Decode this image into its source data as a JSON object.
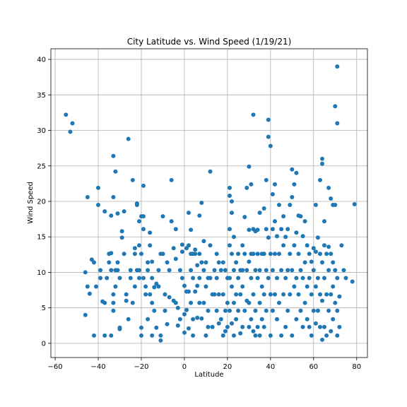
{
  "chart_data": {
    "type": "scatter",
    "title": "City Latitude vs. Wind Speed (1/19/21)",
    "xlabel": "Latitude",
    "ylabel": "Wind Speed",
    "xlim": [
      -62,
      85
    ],
    "ylim": [
      -2,
      41.5
    ],
    "xticks": [
      -60,
      -40,
      -20,
      0,
      20,
      40,
      60,
      80
    ],
    "yticks": [
      0,
      5,
      10,
      15,
      20,
      25,
      30,
      35,
      40
    ],
    "grid": true,
    "marker_color": "#1f77b4",
    "points": [
      [
        -55,
        32.2
      ],
      [
        -53,
        29.8
      ],
      [
        -52,
        31
      ],
      [
        -46,
        10
      ],
      [
        -46,
        4
      ],
      [
        -45,
        20.6
      ],
      [
        -45,
        8
      ],
      [
        -44,
        7
      ],
      [
        -43,
        11.8
      ],
      [
        -42,
        11.4
      ],
      [
        -42,
        1.1
      ],
      [
        -41,
        8
      ],
      [
        -40,
        19.5
      ],
      [
        -40,
        21.9
      ],
      [
        -39,
        9.2
      ],
      [
        -39,
        10.3
      ],
      [
        -38,
        5.9
      ],
      [
        -37,
        5.7
      ],
      [
        -37,
        1.1
      ],
      [
        -37,
        18.6
      ],
      [
        -36,
        9.2
      ],
      [
        -35,
        11.4
      ],
      [
        -35,
        12.6
      ],
      [
        -34,
        1.1
      ],
      [
        -34,
        12.7
      ],
      [
        -34,
        18
      ],
      [
        -34,
        10.3
      ],
      [
        -33,
        26.4
      ],
      [
        -33,
        20.6
      ],
      [
        -33,
        6.9
      ],
      [
        -33,
        5.7
      ],
      [
        -33,
        4.6
      ],
      [
        -32,
        24.2
      ],
      [
        -32,
        10.3
      ],
      [
        -32,
        8
      ],
      [
        -31,
        18.3
      ],
      [
        -31,
        11.4
      ],
      [
        -31,
        10.3
      ],
      [
        -30,
        9.2
      ],
      [
        -30,
        2.2
      ],
      [
        -30,
        2
      ],
      [
        -29,
        14.9
      ],
      [
        -29,
        15.8
      ],
      [
        -28,
        18.6
      ],
      [
        -28,
        12.6
      ],
      [
        -27,
        6.9
      ],
      [
        -27,
        6
      ],
      [
        -26,
        28.8
      ],
      [
        -26,
        3.4
      ],
      [
        -25,
        9.2
      ],
      [
        -25,
        10.3
      ],
      [
        -24,
        23
      ],
      [
        -24,
        5.7
      ],
      [
        -23,
        12.6
      ],
      [
        -23,
        13.4
      ],
      [
        -23,
        8
      ],
      [
        -22,
        19.5
      ],
      [
        -22,
        19.7
      ],
      [
        -22,
        10.3
      ],
      [
        -21,
        17.2
      ],
      [
        -21,
        13.8
      ],
      [
        -21,
        9.2
      ],
      [
        -21,
        10.3
      ],
      [
        -20,
        17.9
      ],
      [
        -20,
        12.6
      ],
      [
        -20,
        2.2
      ],
      [
        -20,
        1.1
      ],
      [
        -19,
        22.2
      ],
      [
        -19,
        17.9
      ],
      [
        -19,
        16.1
      ],
      [
        -19,
        9.2
      ],
      [
        -18,
        8
      ],
      [
        -18,
        6.9
      ],
      [
        -17,
        11.4
      ],
      [
        -17,
        10.3
      ],
      [
        -17,
        3.4
      ],
      [
        -16,
        15.6
      ],
      [
        -16,
        13.8
      ],
      [
        -16,
        6.9
      ],
      [
        -15,
        11.5
      ],
      [
        -15,
        9.2
      ],
      [
        -15,
        5.7
      ],
      [
        -15,
        1.1
      ],
      [
        -14,
        7.9
      ],
      [
        -14,
        4.6
      ],
      [
        -13,
        8.4
      ],
      [
        -13,
        2.2
      ],
      [
        -12,
        10.3
      ],
      [
        -12,
        8
      ],
      [
        -11,
        12.6
      ],
      [
        -11,
        1.1
      ],
      [
        -11,
        0.4
      ],
      [
        -10,
        17.9
      ],
      [
        -10,
        12.6
      ],
      [
        -9,
        6.9
      ],
      [
        -9,
        4.6
      ],
      [
        -8,
        11.4
      ],
      [
        -8,
        2.7
      ],
      [
        -7,
        10.3
      ],
      [
        -7,
        6.5
      ],
      [
        -6,
        23
      ],
      [
        -6,
        17.2
      ],
      [
        -5,
        13.4
      ],
      [
        -5,
        6
      ],
      [
        -4,
        16.1
      ],
      [
        -4,
        11.9
      ],
      [
        -4,
        5.7
      ],
      [
        -3,
        5
      ],
      [
        -3,
        2.5
      ],
      [
        -2,
        10.3
      ],
      [
        -2,
        3.4
      ],
      [
        -1,
        12.9
      ],
      [
        -1,
        13.9
      ],
      [
        -1,
        9.2
      ],
      [
        0,
        8.1
      ],
      [
        0,
        1.5
      ],
      [
        0,
        4.1
      ],
      [
        1,
        13.4
      ],
      [
        1,
        7.3
      ],
      [
        1,
        4.7
      ],
      [
        2,
        18.4
      ],
      [
        2,
        13.8
      ],
      [
        2,
        7.3
      ],
      [
        2,
        2.1
      ],
      [
        3,
        16
      ],
      [
        3,
        12.6
      ],
      [
        3,
        10.3
      ],
      [
        3,
        5.7
      ],
      [
        4,
        12.6
      ],
      [
        4,
        9.2
      ],
      [
        4,
        3.4
      ],
      [
        4,
        1.1
      ],
      [
        5,
        12.6
      ],
      [
        5,
        13.2
      ],
      [
        5,
        7.3
      ],
      [
        6,
        11
      ],
      [
        6,
        8.1
      ],
      [
        6,
        3.6
      ],
      [
        7,
        18
      ],
      [
        7,
        12.6
      ],
      [
        7,
        9.2
      ],
      [
        7,
        5.7
      ],
      [
        8,
        19.8
      ],
      [
        8,
        11.4
      ],
      [
        8,
        3.5
      ],
      [
        9,
        14.4
      ],
      [
        9,
        10.3
      ],
      [
        9,
        5.7
      ],
      [
        10,
        11.4
      ],
      [
        10,
        8
      ],
      [
        10,
        1.1
      ],
      [
        11,
        9.2
      ],
      [
        11,
        4.6
      ],
      [
        11,
        2.3
      ],
      [
        12,
        24.2
      ],
      [
        12,
        13.8
      ],
      [
        12,
        9.2
      ],
      [
        13,
        6.9
      ],
      [
        13,
        2.3
      ],
      [
        14,
        10.3
      ],
      [
        14,
        6.9
      ],
      [
        15,
        12.6
      ],
      [
        15,
        9.2
      ],
      [
        15,
        4.6
      ],
      [
        16,
        11.4
      ],
      [
        16,
        6.9
      ],
      [
        16,
        2.8
      ],
      [
        17,
        10.3
      ],
      [
        17,
        3.4
      ],
      [
        18,
        11.4
      ],
      [
        18,
        6.9
      ],
      [
        18,
        1.1
      ],
      [
        19,
        10.3
      ],
      [
        19,
        4.6
      ],
      [
        19,
        1.7
      ],
      [
        20,
        9.2
      ],
      [
        20,
        5.7
      ],
      [
        20,
        2.3
      ],
      [
        21,
        21.9
      ],
      [
        21,
        20.8
      ],
      [
        21,
        16.1
      ],
      [
        21,
        13.8
      ],
      [
        21,
        9.2
      ],
      [
        21,
        4.6
      ],
      [
        22,
        20
      ],
      [
        22,
        18.4
      ],
      [
        22,
        12.6
      ],
      [
        22,
        8
      ],
      [
        22,
        2.8
      ],
      [
        23,
        15
      ],
      [
        23,
        10.3
      ],
      [
        23,
        5.7
      ],
      [
        23,
        1.1
      ],
      [
        24,
        11.4
      ],
      [
        24,
        6.9
      ],
      [
        24,
        3.4
      ],
      [
        25,
        12.6
      ],
      [
        25,
        9.2
      ],
      [
        25,
        4.6
      ],
      [
        26,
        10.3
      ],
      [
        26,
        6.9
      ],
      [
        26,
        1.4
      ],
      [
        27,
        13.8
      ],
      [
        27,
        10.3
      ],
      [
        27,
        8
      ],
      [
        27,
        2.3
      ],
      [
        28,
        17.8
      ],
      [
        28,
        12.6
      ],
      [
        28,
        4.6
      ],
      [
        29,
        21.9
      ],
      [
        29,
        10.3
      ],
      [
        29,
        6
      ],
      [
        30,
        24.9
      ],
      [
        30,
        16
      ],
      [
        30,
        11.5
      ],
      [
        30,
        5.7
      ],
      [
        30,
        2.3
      ],
      [
        31,
        22.4
      ],
      [
        31,
        12.6
      ],
      [
        31,
        9.2
      ],
      [
        31,
        3.4
      ],
      [
        32,
        32.2
      ],
      [
        32,
        16.1
      ],
      [
        32,
        12.6
      ],
      [
        32,
        6.9
      ],
      [
        32,
        1.7
      ],
      [
        33,
        15.8
      ],
      [
        33,
        10.3
      ],
      [
        33,
        4.6
      ],
      [
        33,
        1.1
      ],
      [
        34,
        16
      ],
      [
        34,
        12.6
      ],
      [
        34,
        9.2
      ],
      [
        34,
        2.3
      ],
      [
        35,
        18.4
      ],
      [
        35,
        10.3
      ],
      [
        35,
        5.7
      ],
      [
        35,
        1.1
      ],
      [
        36,
        12.6
      ],
      [
        36,
        8
      ],
      [
        36,
        3.4
      ],
      [
        37,
        19
      ],
      [
        37,
        12.6
      ],
      [
        37,
        6.9
      ],
      [
        37,
        2.3
      ],
      [
        38,
        23
      ],
      [
        38,
        16.1
      ],
      [
        38,
        10.3
      ],
      [
        38,
        4.6
      ],
      [
        39,
        31.5
      ],
      [
        39,
        29.1
      ],
      [
        39,
        14.9
      ],
      [
        39,
        9.2
      ],
      [
        40,
        27.8
      ],
      [
        40,
        12.6
      ],
      [
        40,
        6.9
      ],
      [
        40,
        1.1
      ],
      [
        41,
        21
      ],
      [
        41,
        16.1
      ],
      [
        41,
        10.3
      ],
      [
        41,
        4.6
      ],
      [
        42,
        22.4
      ],
      [
        42,
        17.2
      ],
      [
        42,
        12.6
      ],
      [
        42,
        6.9
      ],
      [
        43,
        15.1
      ],
      [
        43,
        9.2
      ],
      [
        43,
        3.4
      ],
      [
        44,
        19.5
      ],
      [
        44,
        12.6
      ],
      [
        44,
        5.7
      ],
      [
        45,
        16.1
      ],
      [
        45,
        10.3
      ],
      [
        45,
        1.1
      ],
      [
        46,
        17.9
      ],
      [
        46,
        13.8
      ],
      [
        46,
        6.9
      ],
      [
        47,
        15
      ],
      [
        47,
        9.2
      ],
      [
        47,
        2.3
      ],
      [
        48,
        16.1
      ],
      [
        48,
        10.3
      ],
      [
        48,
        4.6
      ],
      [
        49,
        19.5
      ],
      [
        49,
        12.6
      ],
      [
        49,
        6.9
      ],
      [
        50,
        24.5
      ],
      [
        50,
        20.6
      ],
      [
        50,
        10.3
      ],
      [
        50,
        1.1
      ],
      [
        51,
        22.4
      ],
      [
        51,
        13.8
      ],
      [
        51,
        8
      ],
      [
        52,
        24
      ],
      [
        52,
        15.6
      ],
      [
        52,
        9.2
      ],
      [
        52,
        3.4
      ],
      [
        53,
        18
      ],
      [
        53,
        12.6
      ],
      [
        53,
        6.9
      ],
      [
        54,
        17.9
      ],
      [
        54,
        10.3
      ],
      [
        54,
        4.6
      ],
      [
        55,
        15.1
      ],
      [
        55,
        9.2
      ],
      [
        55,
        2.3
      ],
      [
        56,
        17.2
      ],
      [
        56,
        11.4
      ],
      [
        56,
        5.7
      ],
      [
        57,
        13.8
      ],
      [
        57,
        8
      ],
      [
        57,
        3.4
      ],
      [
        58,
        12.6
      ],
      [
        58,
        9.2
      ],
      [
        58,
        2.3
      ],
      [
        59,
        11.5
      ],
      [
        59,
        6.9
      ],
      [
        59,
        1.1
      ],
      [
        60,
        13.4
      ],
      [
        60,
        10.3
      ],
      [
        60,
        4.6
      ],
      [
        61,
        19.5
      ],
      [
        61,
        12.9
      ],
      [
        61,
        8
      ],
      [
        61,
        2.8
      ],
      [
        62,
        14.9
      ],
      [
        62,
        9.2
      ],
      [
        62,
        4.6
      ],
      [
        63,
        23
      ],
      [
        63,
        12.6
      ],
      [
        63,
        6.9
      ],
      [
        63,
        2.3
      ],
      [
        64,
        26
      ],
      [
        64,
        25.3
      ],
      [
        64,
        11.4
      ],
      [
        64,
        6
      ],
      [
        64,
        0.5
      ],
      [
        65,
        17.2
      ],
      [
        65,
        13.8
      ],
      [
        65,
        9.2
      ],
      [
        65,
        2.3
      ],
      [
        66,
        12.6
      ],
      [
        66,
        6.9
      ],
      [
        66,
        1.1
      ],
      [
        67,
        21.9
      ],
      [
        67,
        13.6
      ],
      [
        67,
        10.3
      ],
      [
        67,
        4.6
      ],
      [
        68,
        20.4
      ],
      [
        68,
        12.6
      ],
      [
        68,
        6.9
      ],
      [
        68,
        1.7
      ],
      [
        69,
        19.5
      ],
      [
        69,
        11.4
      ],
      [
        69,
        8
      ],
      [
        69,
        3.4
      ],
      [
        70,
        33.4
      ],
      [
        70,
        19.5
      ],
      [
        70,
        10.3
      ],
      [
        70,
        5.7
      ],
      [
        71,
        39
      ],
      [
        71,
        31
      ],
      [
        71,
        9.2
      ],
      [
        71,
        4.6
      ],
      [
        71,
        1.1
      ],
      [
        72,
        6.6
      ],
      [
        72,
        2.3
      ],
      [
        73,
        13.8
      ],
      [
        74,
        10.3
      ],
      [
        75,
        9.2
      ],
      [
        78,
        8.7
      ],
      [
        79,
        19.6
      ]
    ]
  }
}
